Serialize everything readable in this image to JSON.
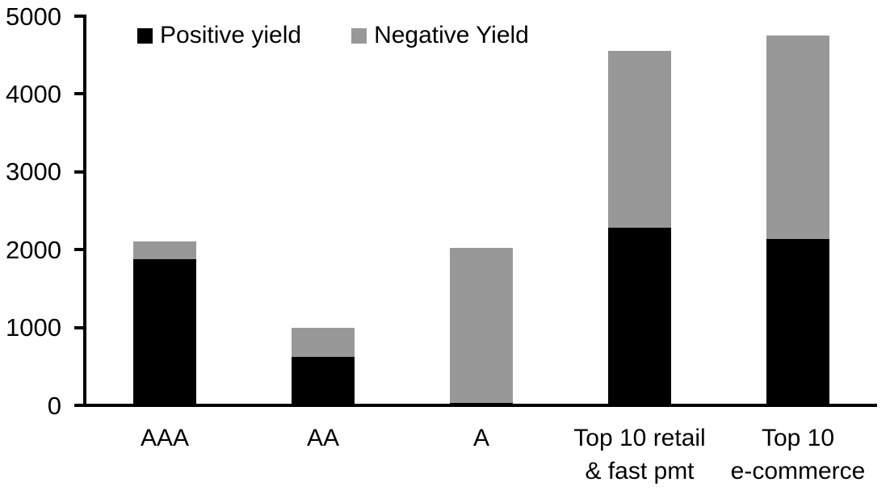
{
  "chart_data": {
    "type": "bar",
    "stacked": true,
    "title": "",
    "xlabel": "",
    "ylabel": "",
    "categories": [
      "AAA",
      "AA",
      "A",
      "Top 10 retail\n& fast pmt",
      "Top 10\ne-commerce"
    ],
    "series": [
      {
        "name": "Positive yield",
        "color": "#000000",
        "values": [
          1880,
          620,
          35,
          2280,
          2140
        ]
      },
      {
        "name": "Negative Yield",
        "color": "#989898",
        "values": [
          230,
          380,
          1990,
          2270,
          2610
        ]
      }
    ],
    "totals": [
      2110,
      1000,
      2025,
      4550,
      4750
    ],
    "ylim": [
      0,
      5000
    ],
    "yticks": [
      0,
      1000,
      2000,
      3000,
      4000,
      5000
    ],
    "grid": false,
    "legend_position": "top-left",
    "axis_color": "#000000",
    "background_color": "#ffffff"
  }
}
